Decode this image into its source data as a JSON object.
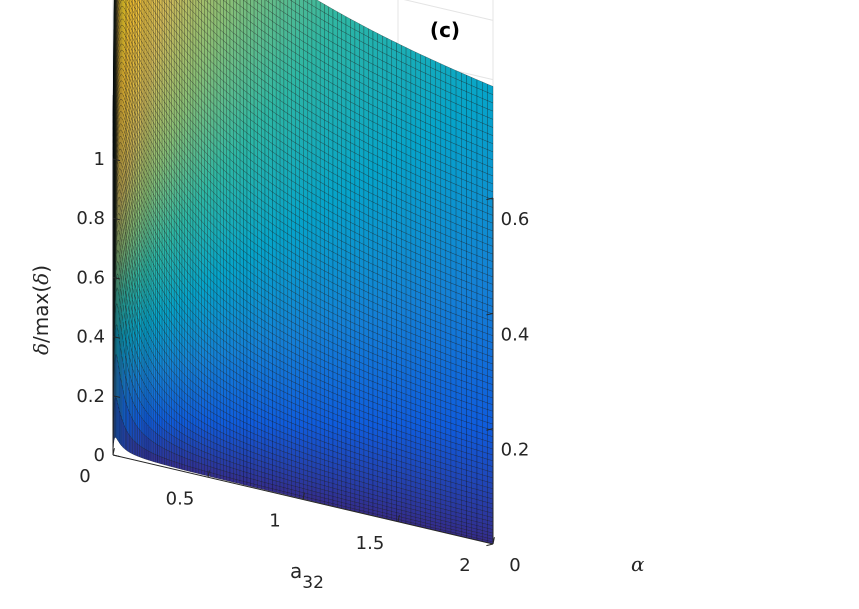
{
  "chart_data": {
    "type": "surface",
    "title": "(c)",
    "xlabel": "a",
    "xlabel_subscript": "32",
    "ylabel": "α",
    "zlabel_parts": [
      "δ",
      "/max(",
      "δ",
      ")"
    ],
    "xlim": [
      0,
      2
    ],
    "ylim": [
      0,
      0.6
    ],
    "zlim": [
      0,
      1
    ],
    "xticks": [
      {
        "value": 0,
        "label": "0"
      },
      {
        "value": 0.5,
        "label": "0.5"
      },
      {
        "value": 1,
        "label": "1"
      },
      {
        "value": 1.5,
        "label": "1.5"
      },
      {
        "value": 2,
        "label": "2"
      }
    ],
    "yticks": [
      {
        "value": 0,
        "label": "0"
      },
      {
        "value": 0.2,
        "label": "0.2"
      },
      {
        "value": 0.4,
        "label": "0.4"
      },
      {
        "value": 0.6,
        "label": "0.6"
      }
    ],
    "zticks": [
      {
        "value": 0,
        "label": "0"
      },
      {
        "value": 0.2,
        "label": "0.2"
      },
      {
        "value": 0.4,
        "label": "0.4"
      },
      {
        "value": 0.6,
        "label": "0.6"
      },
      {
        "value": 0.8,
        "label": "0.8"
      },
      {
        "value": 1,
        "label": "1"
      }
    ],
    "grid": true,
    "colormap": "parula",
    "colormap_colors": [
      "#352a87",
      "#0f5cdd",
      "#1481d6",
      "#06a4ca",
      "#2eb7a4",
      "#87bf77",
      "#d1bb59",
      "#fec832",
      "#f9fb0e"
    ],
    "surface_samples": [
      {
        "a32": 0.0,
        "alpha": 0.6,
        "value": 1.0
      },
      {
        "a32": 0.05,
        "alpha": 0.6,
        "value": 0.94
      },
      {
        "a32": 0.05,
        "alpha": 0.0,
        "value": 0.0
      },
      {
        "a32": 2.0,
        "alpha": 0.6,
        "value": 0.26
      },
      {
        "a32": 2.0,
        "alpha": 0.0,
        "value": 0.0
      },
      {
        "a32": 1.0,
        "alpha": 0.3,
        "value": 0.4
      }
    ]
  }
}
